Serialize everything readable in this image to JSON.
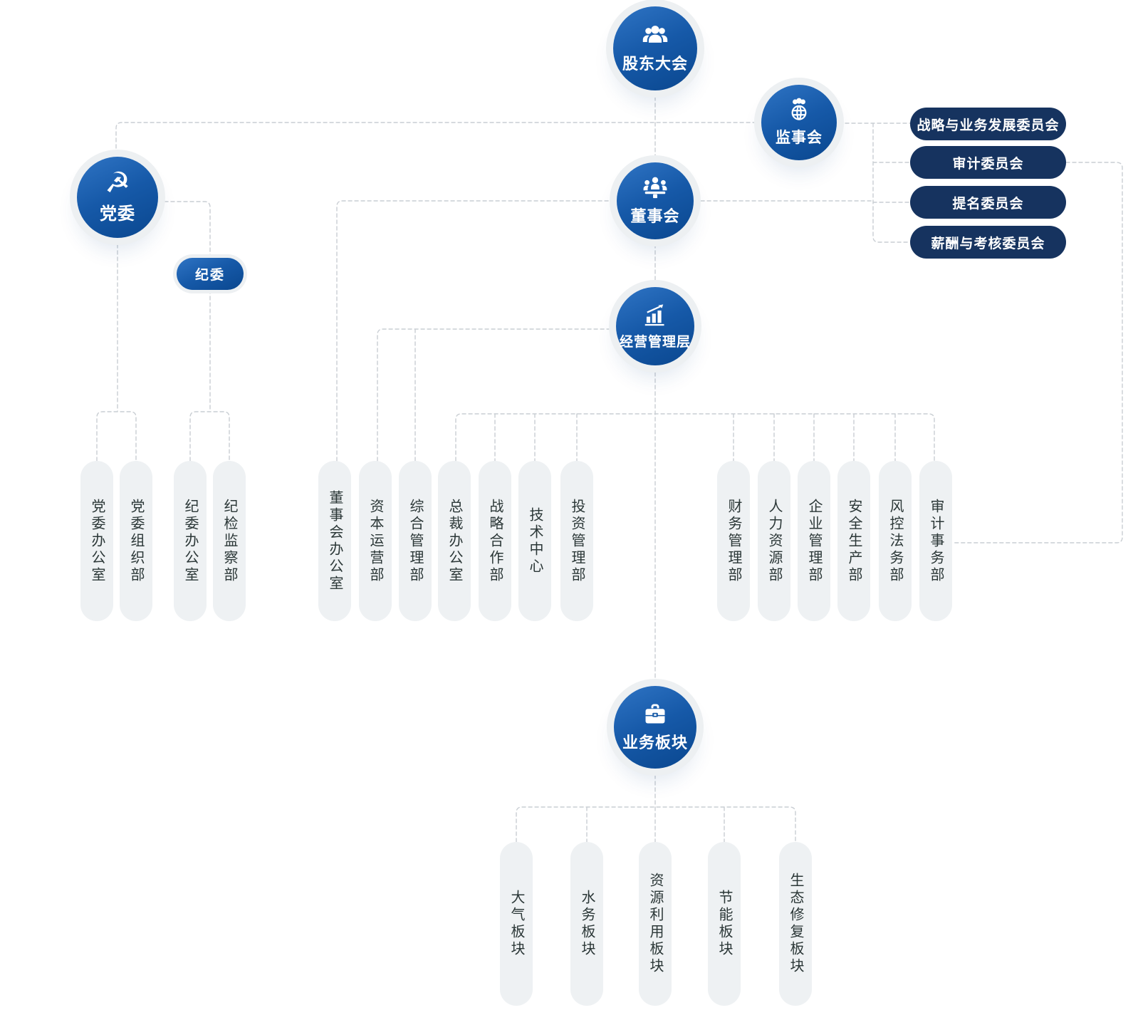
{
  "org": {
    "circles": [
      {
        "id": "shareholders-meeting",
        "label": "股东大会",
        "icon": "people-group-icon"
      },
      {
        "id": "supervisory-board",
        "label": "监事会",
        "icon": "globe-people-icon"
      },
      {
        "id": "party-committee",
        "label": "党委",
        "icon": "hammer-sickle-icon"
      },
      {
        "id": "board-of-directors",
        "label": "董事会",
        "icon": "meeting-icon"
      },
      {
        "id": "management-team",
        "label": "经营管理层",
        "icon": "chart-up-icon"
      },
      {
        "id": "business-segments",
        "label": "业务板块",
        "icon": "briefcase-icon"
      }
    ],
    "discipline_pill": {
      "id": "discipline-committee",
      "label": "纪委"
    },
    "committees": [
      {
        "id": "strategy-development-committee",
        "label": "战略与业务发展委员会"
      },
      {
        "id": "audit-committee",
        "label": "审计委员会"
      },
      {
        "id": "nomination-committee",
        "label": "提名委员会"
      },
      {
        "id": "remuneration-assessment-committee",
        "label": "薪酬与考核委员会"
      }
    ],
    "party_departments": [
      "党委办公室",
      "党委组织部",
      "纪委办公室",
      "纪检监察部"
    ],
    "management_departments": [
      "董事会办公室",
      "资本运营部",
      "综合管理部",
      "总裁办公室",
      "战略合作部",
      "技术中心",
      "投资管理部",
      "财务管理部",
      "人力资源部",
      "企业管理部",
      "安全生产部",
      "风控法务部",
      "审计事务部"
    ],
    "business_segments": [
      "大气板块",
      "水务板块",
      "资源利用板块",
      "节能板块",
      "生态修复板块"
    ]
  },
  "colors": {
    "circle_blue_light": "#2f74c4",
    "circle_blue_dark": "#0a478f",
    "committee_navy": "#16335f",
    "department_pill_bg": "#eef1f3",
    "department_pill_text": "#2b3737",
    "connector_line": "#c9ced3"
  }
}
